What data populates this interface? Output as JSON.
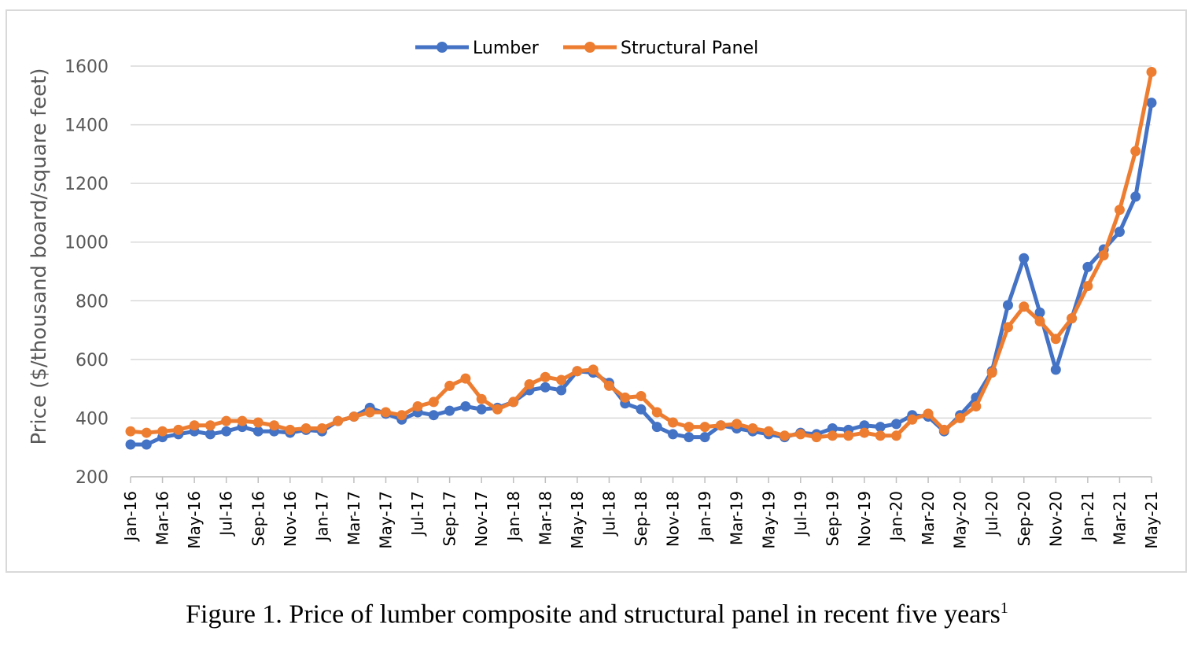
{
  "chart_data": {
    "type": "line",
    "title": "",
    "xlabel": "",
    "ylabel": "Price ($/thousand board/square feet)",
    "ylim": [
      200,
      1600
    ],
    "yticks": [
      200,
      400,
      600,
      800,
      1000,
      1200,
      1400,
      1600
    ],
    "grid": true,
    "legend_position": "top-center",
    "x": [
      "Jan-16",
      "Feb-16",
      "Mar-16",
      "Apr-16",
      "May-16",
      "Jun-16",
      "Jul-16",
      "Aug-16",
      "Sep-16",
      "Oct-16",
      "Nov-16",
      "Dec-16",
      "Jan-17",
      "Feb-17",
      "Mar-17",
      "Apr-17",
      "May-17",
      "Jun-17",
      "Jul-17",
      "Aug-17",
      "Sep-17",
      "Oct-17",
      "Nov-17",
      "Dec-17",
      "Jan-18",
      "Feb-18",
      "Mar-18",
      "Apr-18",
      "May-18",
      "Jun-18",
      "Jul-18",
      "Aug-18",
      "Sep-18",
      "Oct-18",
      "Nov-18",
      "Dec-18",
      "Jan-19",
      "Feb-19",
      "Mar-19",
      "Apr-19",
      "May-19",
      "Jun-19",
      "Jul-19",
      "Aug-19",
      "Sep-19",
      "Oct-19",
      "Nov-19",
      "Dec-19",
      "Jan-20",
      "Feb-20",
      "Mar-20",
      "Apr-20",
      "May-20",
      "Jun-20",
      "Jul-20",
      "Aug-20",
      "Sep-20",
      "Oct-20",
      "Nov-20",
      "Dec-20",
      "Jan-21",
      "Feb-21",
      "Mar-21",
      "Apr-21",
      "May-21"
    ],
    "x_tick_labels": [
      "Jan-16",
      "Mar-16",
      "May-16",
      "Jul-16",
      "Sep-16",
      "Nov-16",
      "Jan-17",
      "Mar-17",
      "May-17",
      "Jul-17",
      "Sep-17",
      "Nov-17",
      "Jan-18",
      "Mar-18",
      "May-18",
      "Jul-18",
      "Sep-18",
      "Nov-18",
      "Jan-19",
      "Mar-19",
      "May-19",
      "Jul-19",
      "Sep-19",
      "Nov-19",
      "Jan-20",
      "Mar-20",
      "May-20",
      "Jul-20",
      "Sep-20",
      "Nov-20",
      "Jan-21",
      "Mar-21",
      "May-21"
    ],
    "series": [
      {
        "name": "Lumber",
        "color": "#4472c4",
        "values": [
          310,
          310,
          335,
          345,
          355,
          345,
          355,
          370,
          355,
          355,
          350,
          360,
          355,
          390,
          405,
          435,
          415,
          395,
          420,
          410,
          425,
          440,
          430,
          435,
          455,
          495,
          505,
          495,
          560,
          555,
          520,
          450,
          430,
          370,
          345,
          335,
          335,
          375,
          365,
          355,
          345,
          335,
          350,
          345,
          365,
          360,
          375,
          370,
          380,
          410,
          405,
          355,
          410,
          470,
          560,
          785,
          945,
          760,
          565,
          740,
          915,
          975,
          1035,
          1155,
          1475
        ]
      },
      {
        "name": "Structural Panel",
        "color": "#ed7d31",
        "values": [
          355,
          350,
          355,
          360,
          375,
          375,
          390,
          390,
          385,
          375,
          360,
          365,
          365,
          390,
          405,
          420,
          420,
          410,
          440,
          455,
          510,
          535,
          465,
          430,
          455,
          515,
          540,
          530,
          560,
          565,
          510,
          470,
          475,
          420,
          385,
          370,
          370,
          375,
          380,
          365,
          355,
          340,
          345,
          335,
          340,
          340,
          350,
          340,
          340,
          395,
          415,
          360,
          400,
          440,
          555,
          710,
          780,
          730,
          670,
          740,
          850,
          955,
          1110,
          1310,
          1580
        ]
      }
    ]
  },
  "caption": {
    "text": "Figure 1. Price of lumber composite and structural panel in recent five years",
    "superscript": "1"
  }
}
